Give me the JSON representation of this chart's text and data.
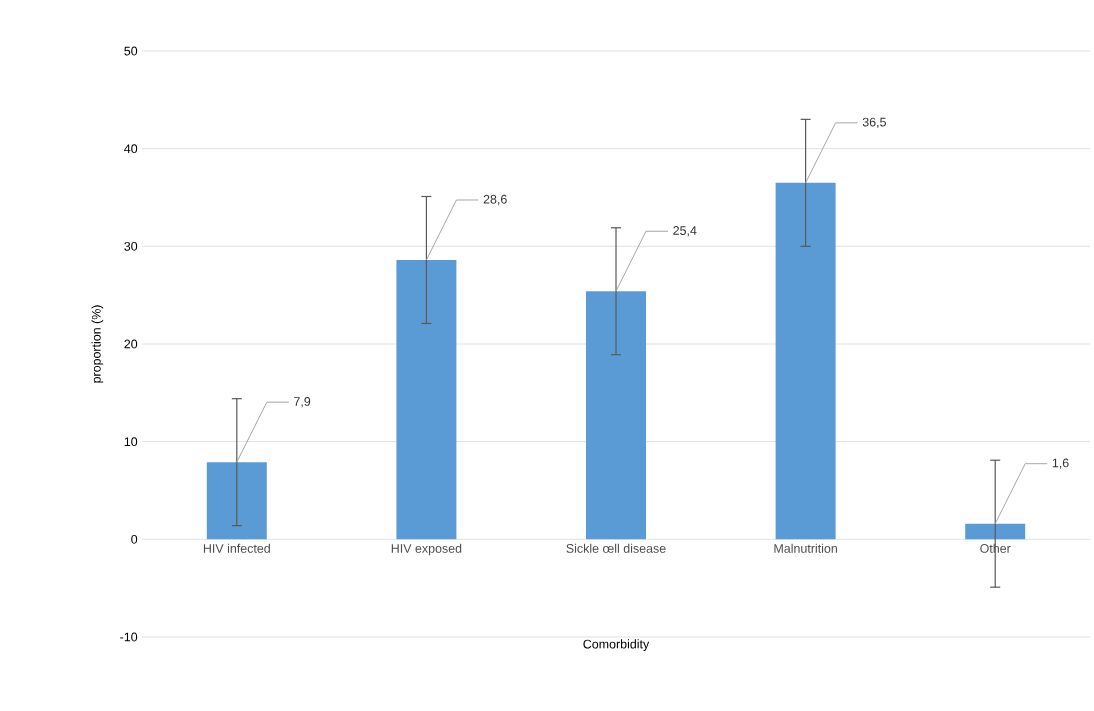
{
  "chart_data": {
    "type": "bar",
    "xlabel": "Comorbidity",
    "ylabel": "proportion (%)",
    "categories": [
      "HIV infected",
      "HIV exposed",
      "Sickle œll disease",
      "Malnutrition",
      "Other"
    ],
    "values": [
      7.9,
      28.6,
      25.4,
      36.5,
      1.6
    ],
    "value_labels": [
      "7,9",
      "28,6",
      "25,4",
      "36,5",
      "1,6"
    ],
    "errors": [
      6.5,
      6.5,
      6.5,
      6.5,
      6.5
    ],
    "color": "#5b9bd5",
    "ylim": [
      -10,
      50
    ],
    "yticks": [
      -10,
      0,
      10,
      20,
      30,
      40,
      50
    ],
    "grid": "y"
  }
}
